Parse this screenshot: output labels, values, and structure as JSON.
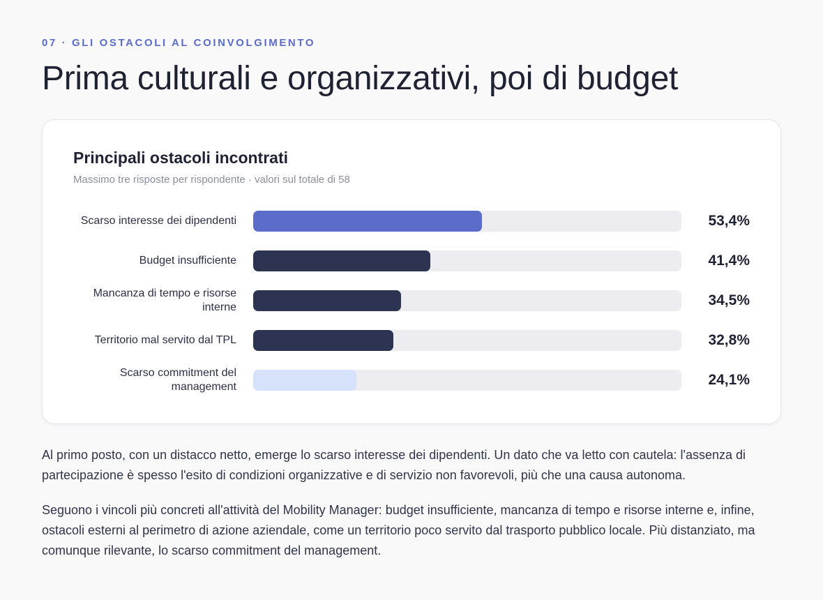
{
  "section": {
    "eyebrow": "07 · GLI OSTACOLI AL COINVOLGIMENTO",
    "title": "Prima culturali e organizzativi, poi di budget"
  },
  "chart_data": {
    "type": "bar",
    "orientation": "horizontal",
    "title": "Principali ostacoli incontrati",
    "subtitle": "Massimo tre risposte per rispondente · valori sul totale di 58",
    "xlim": [
      0,
      100
    ],
    "unit": "%",
    "categories": [
      "Scarso interesse dei dipendenti",
      "Budget insufficiente",
      "Mancanza di tempo e risorse interne",
      "Territorio mal servito dal TPL",
      "Scarso commitment del management"
    ],
    "values": [
      53.4,
      41.4,
      34.5,
      32.8,
      24.1
    ],
    "value_labels": [
      "53,4%",
      "41,4%",
      "34,5%",
      "32,8%",
      "24,1%"
    ],
    "bar_colors": [
      "#5b6cc9",
      "#2d3452",
      "#2d3452",
      "#2d3452",
      "#d6e1fa"
    ],
    "track_color": "#ececf1"
  },
  "paragraphs": [
    "Al primo posto, con un distacco netto, emerge lo scarso interesse dei dipendenti. Un dato che va letto con cautela: l'assenza di partecipazione è spesso l'esito di condizioni organizzative e di servizio non favorevoli, più che una causa autonoma.",
    "Seguono i vincoli più concreti all'attività del Mobility Manager: budget insufficiente, mancanza di tempo e risorse interne e, infine, ostacoli esterni al perimetro di azione aziendale, come un territorio poco servito dal trasporto pubblico locale. Più distanziato, ma comunque rilevante, lo scarso commitment del management."
  ]
}
